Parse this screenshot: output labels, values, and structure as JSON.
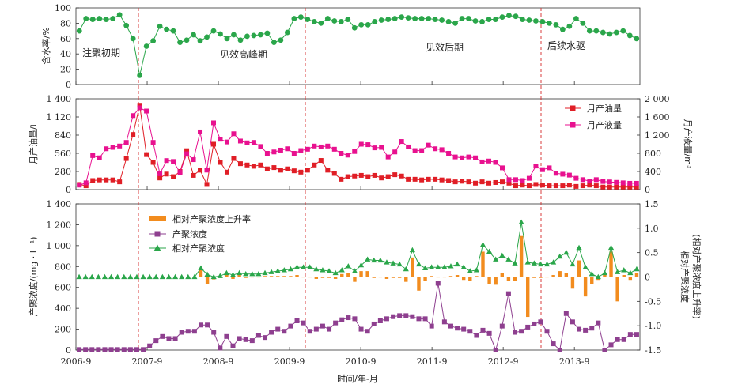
{
  "chart_data": [
    {
      "panel": "water_cut",
      "type": "line",
      "ylabel": "含水率/%",
      "ylim": [
        0,
        100
      ],
      "yticks": [
        "0",
        "20",
        "40",
        "60",
        "80",
        "100"
      ],
      "phases": [
        "注聚初期",
        "见效高峰期",
        "见效后期",
        "后续水驱"
      ],
      "series": [
        {
          "color": "#2aa64a",
          "marker": "circle",
          "values": [
            70,
            86,
            85,
            86,
            85,
            86,
            91,
            77,
            60,
            12,
            50,
            57,
            76,
            72,
            70,
            55,
            58,
            65,
            57,
            62,
            70,
            66,
            60,
            65,
            58,
            63,
            64,
            65,
            67,
            55,
            58,
            68,
            86,
            88,
            85,
            82,
            80,
            86,
            83,
            82,
            85,
            74,
            78,
            78,
            82,
            84,
            85,
            86,
            88,
            87,
            86,
            86,
            86,
            85,
            84,
            82,
            80,
            86,
            86,
            83,
            82,
            85,
            85,
            88,
            90,
            89,
            85,
            84,
            83,
            82,
            80,
            78,
            72,
            76,
            86,
            80,
            70,
            70,
            68,
            66,
            68,
            70,
            64,
            60
          ]
        }
      ]
    },
    {
      "panel": "production",
      "type": "line",
      "ylabel": "月产油量/t",
      "y2label": "月产液量/m³",
      "ylim": [
        0,
        1400
      ],
      "yticks": [
        "0",
        "280",
        "560",
        "840",
        "1 120",
        "1 400"
      ],
      "y2lim": [
        0,
        2000
      ],
      "y2ticks": [
        "0",
        "400",
        "800",
        "1 200",
        "1 600",
        "2 000"
      ],
      "series": [
        {
          "name": "月产油量",
          "color": "#e01e26",
          "marker": "square",
          "axis": "left",
          "values": [
            80,
            60,
            140,
            150,
            150,
            150,
            120,
            480,
            850,
            1300,
            540,
            420,
            180,
            240,
            200,
            280,
            600,
            220,
            300,
            80,
            700,
            420,
            270,
            480,
            400,
            380,
            360,
            380,
            320,
            340,
            300,
            320,
            290,
            270,
            300,
            380,
            450,
            300,
            250,
            160,
            200,
            210,
            220,
            200,
            220,
            180,
            200,
            230,
            210,
            160,
            160,
            150,
            160,
            160,
            150,
            140,
            120,
            130,
            120,
            100,
            120,
            100,
            110,
            120,
            100,
            60,
            70,
            60,
            80,
            70,
            60,
            60,
            60,
            70,
            50,
            60,
            70,
            60,
            40,
            40,
            40,
            40,
            40,
            40
          ]
        },
        {
          "name": "月产液量",
          "color": "#e8118f",
          "marker": "square",
          "axis": "right",
          "values": [
            100,
            150,
            750,
            700,
            900,
            930,
            960,
            1040,
            1630,
            1800,
            1730,
            1040,
            350,
            640,
            620,
            380,
            790,
            660,
            1270,
            430,
            1470,
            1110,
            1050,
            1230,
            1070,
            1030,
            1040,
            950,
            800,
            830,
            870,
            900,
            800,
            860,
            890,
            960,
            940,
            960,
            890,
            800,
            760,
            840,
            1000,
            990,
            920,
            930,
            720,
            830,
            1060,
            940,
            860,
            860,
            980,
            900,
            880,
            800,
            720,
            700,
            720,
            700,
            610,
            630,
            600,
            480,
            220,
            220,
            200,
            250,
            520,
            440,
            480,
            360,
            340,
            320,
            250,
            220,
            190,
            220,
            180,
            170,
            160,
            150,
            140,
            140
          ]
        }
      ]
    },
    {
      "panel": "polymer_concentration",
      "type": "line+bar",
      "ylabel": "产聚浓度/(mg · L⁻¹)",
      "y2label": "相对产聚浓度",
      "y2label_2": "(相对产聚浓度上升率)",
      "ylim": [
        0,
        1400
      ],
      "yticks": [
        "0",
        "200",
        "400",
        "600",
        "800",
        "1 000",
        "1 200",
        "1 400"
      ],
      "y2lim": [
        -1.5,
        1.5
      ],
      "y2ticks": [
        "-1.5",
        "-1.0",
        "-0.5",
        "0",
        "0.5",
        "1.0",
        "1.5"
      ],
      "xlabel": "时间/年-月",
      "xticks": [
        "2006-9",
        "2007-9",
        "2008-9",
        "2009-9",
        "2010-9",
        "2011-9",
        "2012-9",
        "2013-9"
      ],
      "series": [
        {
          "name": "产聚浓度",
          "color": "#8e3f8f",
          "marker": "square",
          "axis": "left",
          "values": [
            5,
            5,
            5,
            5,
            5,
            5,
            5,
            5,
            5,
            5,
            5,
            40,
            90,
            130,
            110,
            110,
            170,
            180,
            180,
            240,
            240,
            170,
            20,
            130,
            40,
            110,
            100,
            90,
            140,
            120,
            170,
            200,
            180,
            230,
            280,
            260,
            180,
            200,
            230,
            200,
            260,
            290,
            310,
            300,
            200,
            180,
            250,
            280,
            300,
            320,
            330,
            330,
            320,
            300,
            300,
            230,
            640,
            270,
            230,
            210,
            200,
            180,
            140,
            190,
            160,
            0,
            230,
            540,
            170,
            180,
            220,
            250,
            270,
            180,
            60,
            0,
            350,
            270,
            200,
            190,
            210,
            260,
            0,
            50,
            100,
            100,
            150,
            150
          ]
        },
        {
          "name": "相对产聚浓度",
          "color": "#2aa64a",
          "marker": "triangle",
          "axis": "right",
          "values": [
            0,
            0,
            0,
            0,
            0,
            0,
            0,
            0,
            0,
            0,
            0,
            0,
            0,
            0,
            0,
            0,
            0,
            0,
            0,
            0.18,
            0.05,
            0.0,
            0.02,
            0.08,
            0.04,
            0.08,
            0.06,
            0.06,
            0.06,
            0.08,
            0.1,
            0.12,
            0.14,
            0.16,
            0.2,
            0.2,
            0.2,
            0.16,
            0.14,
            0.12,
            0.08,
            0.14,
            0.22,
            0.12,
            0.24,
            0.36,
            0.34,
            0.34,
            0.3,
            0.28,
            0.26,
            0.16,
            0.55,
            0.26,
            0.18,
            0.2,
            0.2,
            0.2,
            0.22,
            0.26,
            0.2,
            0.12,
            0.14,
            0.66,
            0.52,
            0.36,
            0.44,
            0.36,
            0.28,
            1.12,
            0.3,
            0.28,
            0.26,
            0.26,
            0.3,
            0.42,
            0.5,
            0.26,
            0.6,
            0.2,
            0.06,
            0.0,
            0.08,
            0.6,
            0.1,
            0.14,
            0.08,
            0.16
          ]
        },
        {
          "name": "相对产聚浓度上升率",
          "color": "#f28c1e",
          "type": "bar",
          "axis": "right",
          "values": [
            0,
            0,
            0,
            0,
            0,
            0,
            0,
            0,
            0,
            0,
            0,
            0,
            0,
            0,
            0,
            0,
            0,
            0,
            0,
            0.18,
            -0.14,
            -0.05,
            0.02,
            0.06,
            -0.04,
            0.04,
            -0.02,
            0,
            0,
            0.02,
            0.02,
            0.02,
            0.02,
            0.02,
            0.04,
            0,
            0,
            -0.04,
            -0.02,
            -0.02,
            -0.04,
            0.06,
            0.08,
            -0.1,
            0.12,
            0.12,
            -0.02,
            0,
            -0.04,
            -0.02,
            -0.02,
            -0.1,
            0.4,
            -0.28,
            -0.08,
            0.02,
            0,
            0,
            0.02,
            0.04,
            -0.06,
            -0.08,
            0.02,
            0.52,
            -0.14,
            -0.16,
            0.08,
            -0.08,
            -0.08,
            0.84,
            -0.82,
            -0.02,
            -0.02,
            0,
            0.04,
            0.12,
            0.08,
            -0.24,
            0.34,
            -0.4,
            -0.14,
            -0.06,
            0.08,
            0.52,
            -0.5,
            0.04,
            -0.06,
            0.08
          ]
        }
      ]
    }
  ]
}
